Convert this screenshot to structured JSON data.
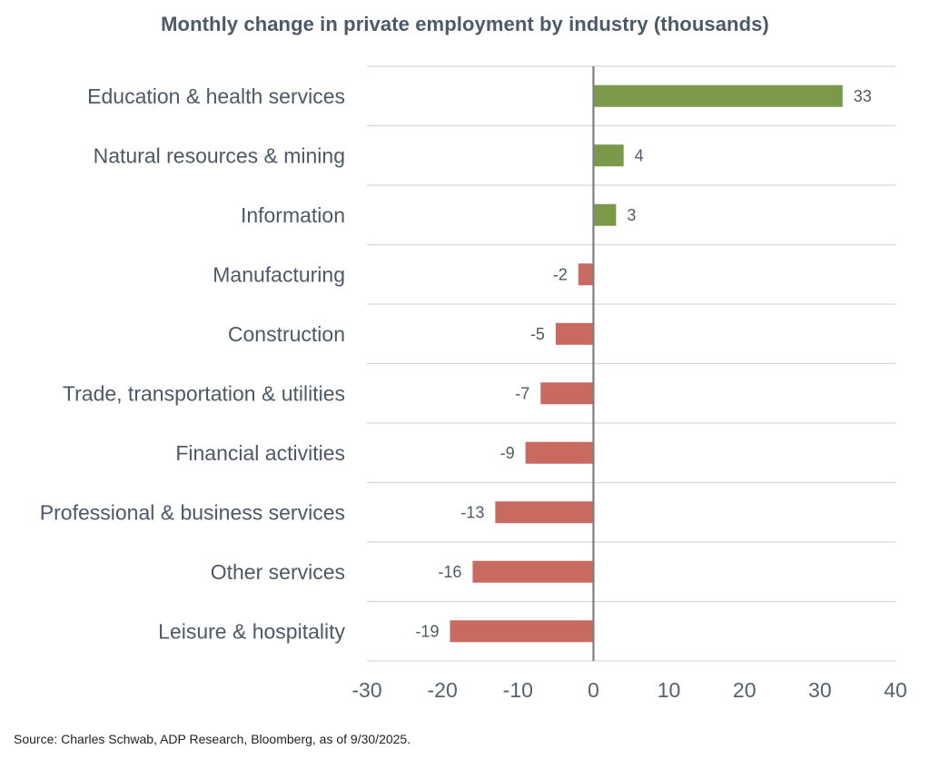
{
  "chart_data": {
    "type": "bar",
    "orientation": "horizontal",
    "title": "Monthly change in private employment by industry (thousands)",
    "xlabel": "",
    "ylabel": "",
    "categories": [
      "Education & health services",
      "Natural resources & mining",
      "Information",
      "Manufacturing",
      "Construction",
      "Trade, transportation & utilities",
      "Financial activities",
      "Professional & business services",
      "Other services",
      "Leisure & hospitality"
    ],
    "values": [
      33,
      4,
      3,
      -2,
      -5,
      -7,
      -9,
      -13,
      -16,
      -19
    ],
    "data_labels": [
      "33",
      "4",
      "3",
      "-2",
      "-5",
      "-7",
      "-9",
      "-13",
      "-16",
      "-19"
    ],
    "xlim": [
      -30,
      40
    ],
    "xticks": [
      -30,
      -20,
      -10,
      0,
      10,
      20,
      30,
      40
    ],
    "xtick_labels": [
      "-30",
      "-20",
      "-10",
      "0",
      "10",
      "20",
      "30",
      "40"
    ],
    "grid": "horizontal separators between categories",
    "legend": "none",
    "colors": {
      "positive": "#7a9a4a",
      "negative": "#c96a60",
      "zero_line": "#7f7f7f",
      "grid": "#d6d6d6"
    }
  },
  "source": "Source: Charles Schwab, ADP Research, Bloomberg, as of 9/30/2025."
}
